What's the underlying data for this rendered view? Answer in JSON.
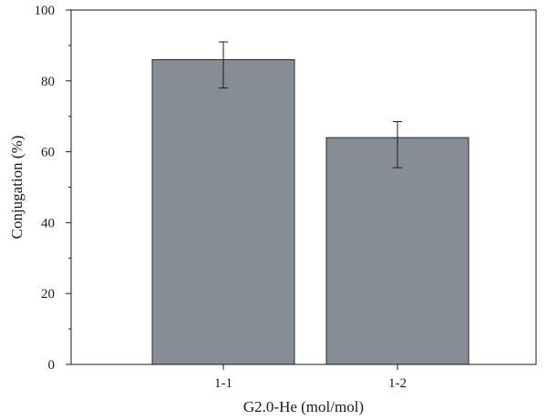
{
  "chart_data": {
    "type": "bar",
    "xlabel": "G2.0-He (mol/mol)",
    "ylabel": "Conjugation (%)",
    "categories": [
      "1-1",
      "1-2"
    ],
    "values": [
      86,
      64
    ],
    "errors": [
      {
        "low": 78,
        "high": 91
      },
      {
        "low": 55.5,
        "high": 68.5
      }
    ],
    "ylim": [
      0,
      100
    ],
    "yticks": [
      "0",
      "20",
      "40",
      "60",
      "80",
      "100"
    ],
    "minor_ticks": true,
    "grid": false,
    "bar_color": "#878d94",
    "bar_edge_color": "#2b2b2b"
  }
}
